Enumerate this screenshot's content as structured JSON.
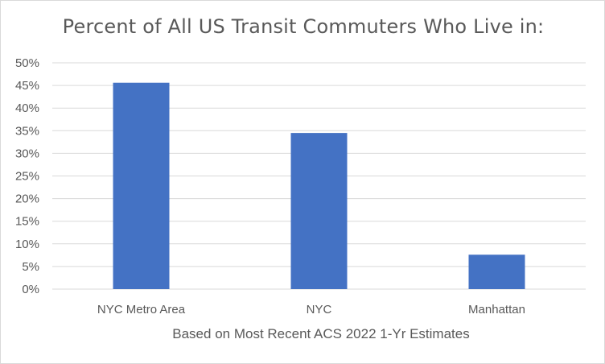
{
  "chart_data": {
    "type": "bar",
    "title": "Percent of All US Transit Commuters Who Live in:",
    "xlabel": "Based on Most Recent ACS 2022 1-Yr Estimates",
    "ylabel": "",
    "categories": [
      "NYC Metro Area",
      "NYC",
      "Manhattan"
    ],
    "values": [
      45.6,
      34.5,
      7.6
    ],
    "ylim": [
      0,
      50
    ],
    "yticks": [
      "0%",
      "5%",
      "10%",
      "15%",
      "20%",
      "25%",
      "30%",
      "35%",
      "40%",
      "45%",
      "50%"
    ],
    "grid": true,
    "legend": "none",
    "bar_color": "#4472C4",
    "grid_color": "#D9D9D9",
    "text_color": "#595959"
  }
}
